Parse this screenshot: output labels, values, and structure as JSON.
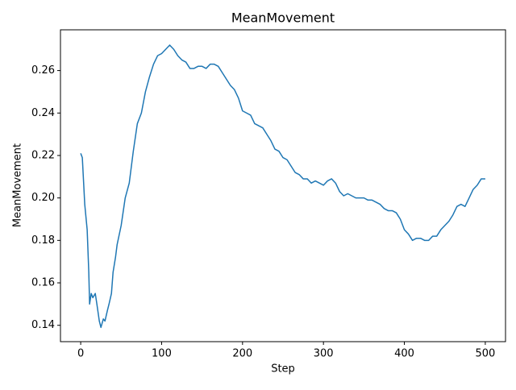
{
  "chart_data": {
    "type": "line",
    "title": "MeanMovement",
    "x_label": "Step",
    "y_label": "MeanMovement",
    "x": [
      0,
      2,
      5,
      8,
      10,
      11,
      13,
      15,
      18,
      20,
      23,
      25,
      28,
      30,
      33,
      35,
      38,
      40,
      43,
      45,
      50,
      55,
      60,
      65,
      70,
      75,
      80,
      85,
      90,
      95,
      100,
      105,
      110,
      115,
      120,
      125,
      130,
      135,
      140,
      145,
      150,
      155,
      160,
      165,
      170,
      175,
      180,
      185,
      190,
      195,
      200,
      205,
      210,
      215,
      220,
      225,
      230,
      235,
      240,
      245,
      250,
      255,
      260,
      265,
      270,
      275,
      280,
      285,
      290,
      295,
      300,
      305,
      310,
      315,
      320,
      325,
      330,
      335,
      340,
      345,
      350,
      355,
      360,
      365,
      370,
      375,
      380,
      385,
      390,
      395,
      400,
      405,
      410,
      415,
      420,
      425,
      430,
      435,
      440,
      445,
      450,
      455,
      460,
      465,
      470,
      475,
      480,
      485,
      490,
      495,
      500
    ],
    "series": [
      {
        "name": "MeanMovement",
        "color": "#1f77b4",
        "values": [
          0.221,
          0.219,
          0.197,
          0.185,
          0.165,
          0.15,
          0.155,
          0.153,
          0.155,
          0.15,
          0.142,
          0.139,
          0.143,
          0.142,
          0.147,
          0.15,
          0.155,
          0.165,
          0.172,
          0.178,
          0.187,
          0.2,
          0.207,
          0.222,
          0.235,
          0.24,
          0.25,
          0.257,
          0.263,
          0.267,
          0.268,
          0.27,
          0.272,
          0.27,
          0.267,
          0.265,
          0.264,
          0.261,
          0.261,
          0.262,
          0.262,
          0.261,
          0.263,
          0.263,
          0.262,
          0.259,
          0.256,
          0.253,
          0.251,
          0.247,
          0.241,
          0.24,
          0.239,
          0.235,
          0.234,
          0.233,
          0.23,
          0.227,
          0.223,
          0.222,
          0.219,
          0.218,
          0.215,
          0.212,
          0.211,
          0.209,
          0.209,
          0.207,
          0.208,
          0.207,
          0.206,
          0.208,
          0.209,
          0.207,
          0.203,
          0.201,
          0.202,
          0.201,
          0.2,
          0.2,
          0.2,
          0.199,
          0.199,
          0.198,
          0.197,
          0.195,
          0.194,
          0.194,
          0.193,
          0.19,
          0.185,
          0.183,
          0.18,
          0.181,
          0.181,
          0.18,
          0.18,
          0.182,
          0.182,
          0.185,
          0.187,
          0.189,
          0.192,
          0.196,
          0.197,
          0.196,
          0.2,
          0.204,
          0.206,
          0.209,
          0.209
        ]
      }
    ],
    "xlim": [
      -25,
      525
    ],
    "xticks": [
      0,
      100,
      200,
      300,
      400,
      500
    ],
    "ylim": [
      0.1323,
      0.2792
    ],
    "yticks": [
      0.14,
      0.16,
      0.18,
      {
        "value": 0.2,
        "label": "0.20"
      },
      0.22,
      0.24,
      0.26
    ]
  }
}
